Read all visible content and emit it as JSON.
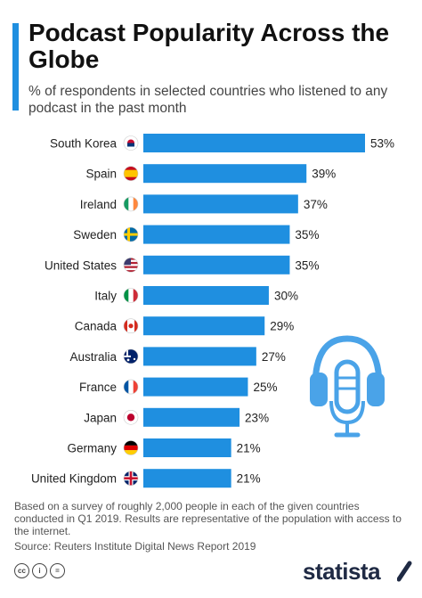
{
  "header": {
    "title": "Podcast Popularity Across the Globe",
    "subtitle": "% of respondents in selected countries who listened to any podcast in the past month"
  },
  "chart_data": {
    "type": "bar",
    "orientation": "horizontal",
    "title": "Podcast Popularity Across the Globe",
    "subtitle": "% of respondents in selected countries who listened to any podcast in the past month",
    "categories": [
      "South Korea",
      "Spain",
      "Ireland",
      "Sweden",
      "United States",
      "Italy",
      "Canada",
      "Australia",
      "France",
      "Japan",
      "Germany",
      "United Kingdom"
    ],
    "values": [
      53,
      39,
      37,
      35,
      35,
      30,
      29,
      27,
      25,
      23,
      21,
      21
    ],
    "value_labels": [
      "53%",
      "39%",
      "37%",
      "35%",
      "35%",
      "30%",
      "29%",
      "27%",
      "25%",
      "23%",
      "21%",
      "21%"
    ],
    "flag_icons": [
      "south-korea-flag-icon",
      "spain-flag-icon",
      "ireland-flag-icon",
      "sweden-flag-icon",
      "united-states-flag-icon",
      "italy-flag-icon",
      "canada-flag-icon",
      "australia-flag-icon",
      "france-flag-icon",
      "japan-flag-icon",
      "germany-flag-icon",
      "united-kingdom-flag-icon"
    ],
    "xlim": [
      0,
      53
    ],
    "grid": false,
    "bar_color": "#1f8fe0"
  },
  "footer": {
    "note": "Based on a survey of roughly 2,000 people in each of the given countries conducted in Q1 2019. Results are representative of the population with access to the internet.",
    "source": "Source: Reuters Institute Digital News Report 2019",
    "license_icons": [
      "cc",
      "i",
      "="
    ],
    "brand": "statista"
  },
  "colors": {
    "accent": "#1f8fe0",
    "brand_navy": "#1f2a44",
    "headphones": "#4aa3e8"
  }
}
